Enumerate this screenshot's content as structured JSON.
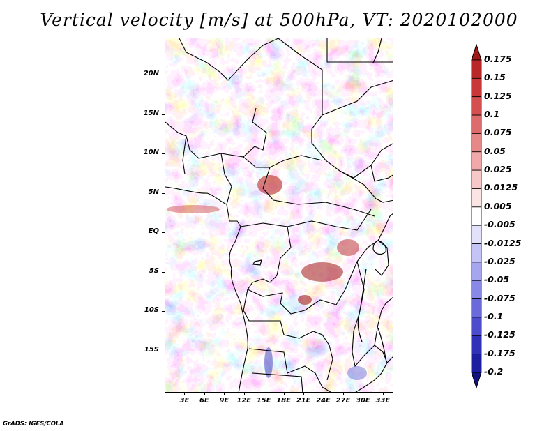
{
  "title": "Vertical velocity [m/s] at 500hPa, VT: 2020102000",
  "map": {
    "lat_labels": [
      "20N",
      "15N",
      "10N",
      "5N",
      "EQ",
      "5S",
      "10S",
      "15S"
    ],
    "lon_labels": [
      "3E",
      "6E",
      "9E",
      "12E",
      "15E",
      "18E",
      "21E",
      "24E",
      "27E",
      "30E",
      "33E"
    ],
    "lon_range": [
      0,
      34.6
    ],
    "lat_range": [
      -20.3,
      24.7
    ]
  },
  "colorbar": {
    "labels": [
      "0.175",
      "0.15",
      "0.125",
      "0.1",
      "0.075",
      "0.05",
      "0.025",
      "0.0125",
      "0.005",
      "-0.005",
      "-0.0125",
      "-0.025",
      "-0.05",
      "-0.075",
      "-0.1",
      "-0.125",
      "-0.175",
      "-0.2"
    ],
    "colors": [
      "#a01818",
      "#b82828",
      "#c83838",
      "#d45050",
      "#de6c6c",
      "#e68888",
      "#f0a8a8",
      "#f6c8c8",
      "#fbe4e4",
      "#ffffff",
      "#e2e2fb",
      "#c4c4f6",
      "#a6a6ef",
      "#8888e6",
      "#6a6adb",
      "#4c4ccc",
      "#3030b8",
      "#1e1ea0",
      "#121280"
    ]
  },
  "footer": "GrADS: IGES/COLA"
}
